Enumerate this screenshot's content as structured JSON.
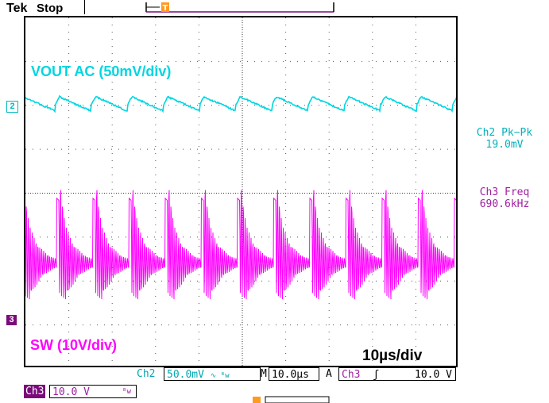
{
  "header": {
    "brand": "Tek",
    "acquisition_state": "Stop"
  },
  "channels": {
    "ch2": {
      "label": "VOUT AC (50mV/div)",
      "marker": "2",
      "color": "#00d6e0"
    },
    "ch3": {
      "label": "SW (10V/div)",
      "marker": "3",
      "color": "#ff00ff"
    }
  },
  "timebase_label": "10µs/div",
  "measurements": [
    {
      "name": "Ch2 Pk−Pk",
      "value": "19.0mV"
    },
    {
      "name": "Ch3 Freq",
      "value": "690.6kHz"
    }
  ],
  "status_bar": {
    "ch2_name": "Ch2",
    "ch2_scale": "50.0mV",
    "ch2_coupling": "∿ ᴮw",
    "horiz_prefix": "M",
    "horiz_scale": "10.0µs",
    "trigger_prefix": "A",
    "trigger_source": "Ch3",
    "trigger_slope": "ʃ",
    "trigger_level": "10.0 V"
  },
  "ch3_status": {
    "name": "Ch3",
    "scale": "10.0 V",
    "bw": "ᴮw"
  },
  "icons": {
    "trigger_marker": "trigger-t-icon",
    "record_position": "record-bar-icon"
  }
}
